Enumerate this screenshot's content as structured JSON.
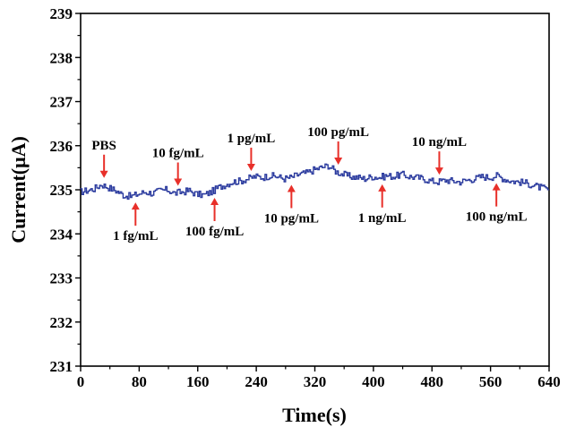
{
  "chart_data": {
    "type": "line",
    "title": "",
    "xlabel": "Time(s)",
    "ylabel": "Current(μA)",
    "xlim": [
      0,
      640
    ],
    "ylim": [
      231,
      239
    ],
    "xticks": [
      0,
      80,
      160,
      240,
      320,
      400,
      480,
      560,
      640
    ],
    "yticks": [
      231,
      232,
      233,
      234,
      235,
      236,
      237,
      238,
      239
    ],
    "grid": false,
    "legend": "none",
    "colors": {
      "line": "#2a3a9e",
      "arrow": "#e8302a",
      "axis": "#000000"
    },
    "series": [
      {
        "x": [
          0,
          10,
          20,
          30,
          40,
          50,
          60,
          70,
          80,
          90,
          100,
          110,
          120,
          130,
          140,
          150,
          160,
          170,
          180,
          190,
          200,
          210,
          220,
          230,
          240,
          250,
          260,
          270,
          280,
          290,
          300,
          310,
          320,
          330,
          340,
          350,
          360,
          370,
          380,
          390,
          400,
          410,
          420,
          430,
          440,
          450,
          460,
          470,
          480,
          490,
          500,
          510,
          520,
          530,
          540,
          550,
          560,
          570,
          580,
          590,
          600,
          610,
          620,
          630,
          640
        ],
        "values": [
          234.95,
          234.98,
          235.02,
          235.12,
          235.05,
          234.98,
          234.88,
          234.85,
          234.9,
          234.95,
          234.92,
          234.98,
          235.0,
          234.92,
          234.95,
          234.98,
          234.9,
          234.88,
          234.95,
          235.05,
          235.12,
          235.18,
          235.2,
          235.25,
          235.3,
          235.28,
          235.32,
          235.3,
          235.25,
          235.28,
          235.35,
          235.38,
          235.45,
          235.5,
          235.55,
          235.42,
          235.35,
          235.3,
          235.28,
          235.25,
          235.3,
          235.28,
          235.32,
          235.3,
          235.35,
          235.3,
          235.28,
          235.25,
          235.2,
          235.18,
          235.22,
          235.2,
          235.18,
          235.22,
          235.25,
          235.3,
          235.28,
          235.32,
          235.25,
          235.2,
          235.18,
          235.15,
          235.1,
          235.05,
          235.0
        ]
      }
    ],
    "annotations": [
      {
        "label": "PBS",
        "x": 32,
        "position": "above"
      },
      {
        "label": "1 fg/mL",
        "x": 75,
        "position": "below"
      },
      {
        "label": "10 fg/mL",
        "x": 133,
        "position": "above"
      },
      {
        "label": "100 fg/mL",
        "x": 183,
        "position": "below"
      },
      {
        "label": "1 pg/mL",
        "x": 233,
        "position": "above"
      },
      {
        "label": "10 pg/mL",
        "x": 288,
        "position": "below"
      },
      {
        "label": "100 pg/mL",
        "x": 352,
        "position": "above"
      },
      {
        "label": "1 ng/mL",
        "x": 412,
        "position": "below"
      },
      {
        "label": "10 ng/mL",
        "x": 490,
        "position": "above"
      },
      {
        "label": "100 ng/mL",
        "x": 568,
        "position": "below"
      }
    ]
  }
}
